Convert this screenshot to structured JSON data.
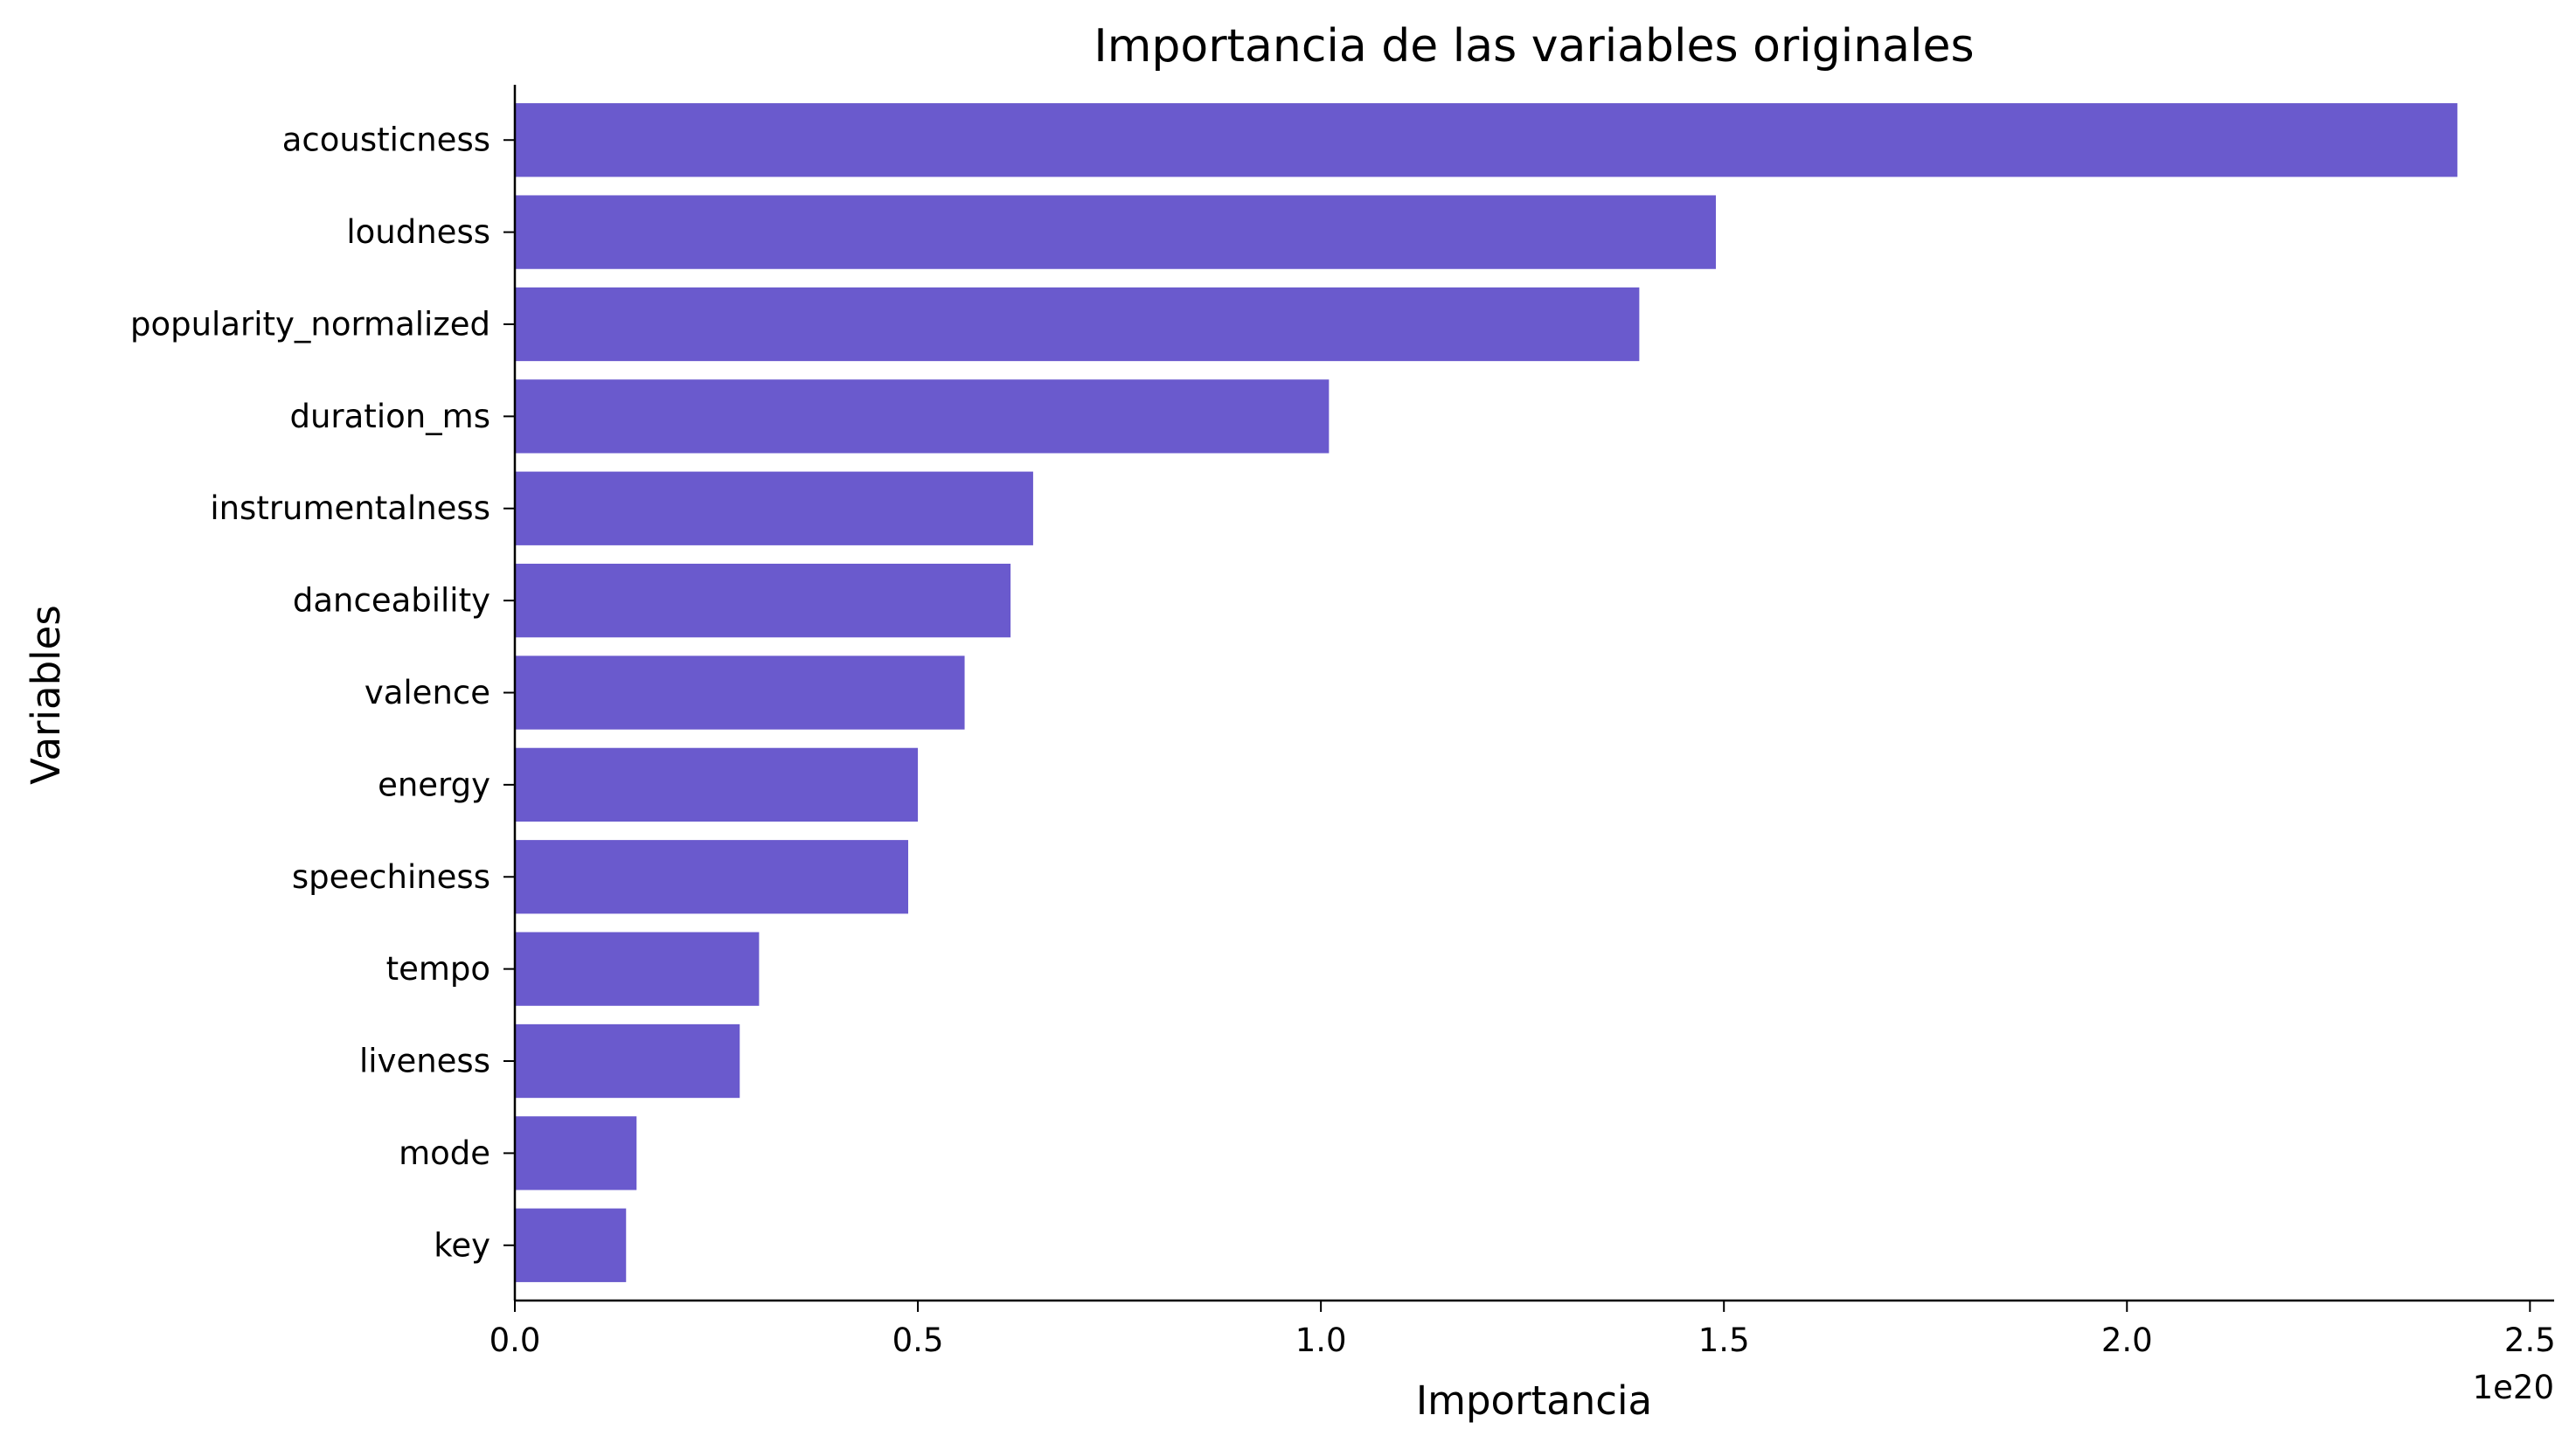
{
  "chart_data": {
    "type": "bar",
    "orientation": "horizontal",
    "title": "Importancia de las variables originales",
    "xlabel": "Importancia",
    "ylabel": "Variables",
    "x_scale_label": "1e20",
    "xlim": [
      0,
      2.53
    ],
    "x_ticks": [
      0.0,
      0.5,
      1.0,
      1.5,
      2.0,
      2.5
    ],
    "x_tick_labels": [
      "0.0",
      "0.5",
      "1.0",
      "1.5",
      "2.0",
      "2.5"
    ],
    "categories": [
      "acousticness",
      "loudness",
      "popularity_normalized",
      "duration_ms",
      "instrumentalness",
      "danceability",
      "valence",
      "energy",
      "speechiness",
      "tempo",
      "liveness",
      "mode",
      "key"
    ],
    "values": [
      2.41,
      1.49,
      1.395,
      1.01,
      0.643,
      0.615,
      0.558,
      0.5,
      0.488,
      0.303,
      0.279,
      0.151,
      0.138
    ],
    "bar_color": "#6a5acd",
    "grid": false,
    "legend": "none"
  }
}
